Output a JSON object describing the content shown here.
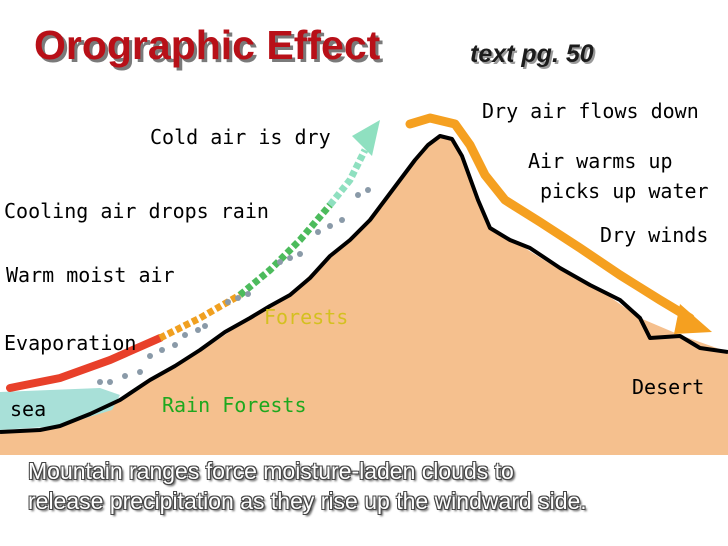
{
  "header": {
    "title": "Orographic Effect",
    "reference": "text pg. 50"
  },
  "diagram": {
    "labels": {
      "cold_air": "Cold air is dry",
      "cooling_air": "Cooling air drops rain",
      "warm_moist": "Warm moist air",
      "evaporation": "Evaporation",
      "sea": "sea",
      "rain_forests": "Rain Forests",
      "forests": "Forests",
      "dry_air_down": "Dry air flows down",
      "air_warms_1": "Air warms up",
      "air_warms_2": "picks up water",
      "dry_winds": "Dry winds",
      "desert": "Desert"
    },
    "colors": {
      "mountain": "#f5c08e",
      "outline": "#000000",
      "warm_air": "#e8402a",
      "rising_air": "#f0a020",
      "cooling_air": "#4cbb5c",
      "cold_air": "#8fe0c0",
      "descending_air": "#f5a020",
      "sea": "#a8e0d8",
      "rain": "#8a9aa8"
    }
  },
  "caption": {
    "line1": "Mountain ranges force moisture-laden clouds to",
    "line2": "release precipitation as they rise up the windward side."
  }
}
